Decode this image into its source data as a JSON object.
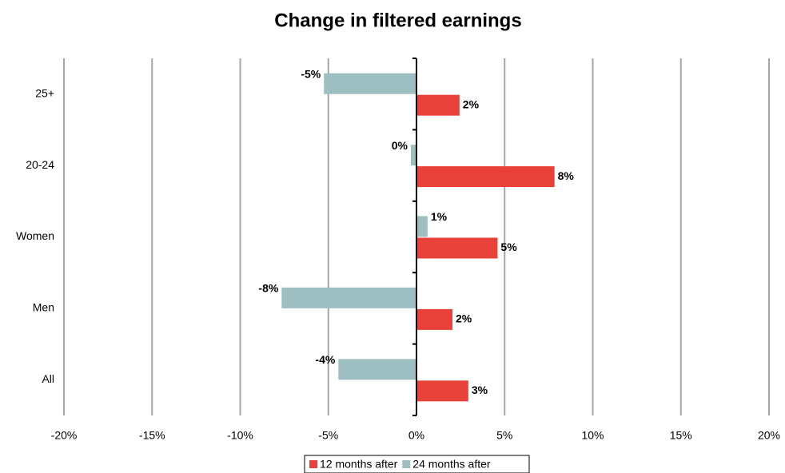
{
  "chart_data": {
    "type": "hbar",
    "title": "Change in filtered earnings",
    "categories": [
      "25+",
      "20-24",
      "Women",
      "Men",
      "All"
    ],
    "series": [
      {
        "name": "12 months after",
        "color": "#e8413a",
        "values": [
          2.44,
          7.83,
          4.6,
          2.04,
          2.94
        ],
        "value_labels": [
          "2%",
          "8%",
          "5%",
          "2%",
          "3%"
        ]
      },
      {
        "name": "24 months after",
        "color": "#9dbfc2",
        "values": [
          -5.25,
          -0.32,
          0.63,
          -7.65,
          -4.43
        ],
        "value_labels": [
          "-5%",
          "0%",
          "1%",
          "-8%",
          "-4%"
        ]
      }
    ],
    "xlim": [
      -20,
      20
    ],
    "xticks": [
      {
        "value": -20,
        "label": "-20%"
      },
      {
        "value": -15,
        "label": "-15%"
      },
      {
        "value": -10,
        "label": "-10%"
      },
      {
        "value": -5,
        "label": "-5%"
      },
      {
        "value": 0,
        "label": "0%"
      },
      {
        "value": 5,
        "label": "5%"
      },
      {
        "value": 10,
        "label": "10%"
      },
      {
        "value": 15,
        "label": "15%"
      },
      {
        "value": 20,
        "label": "20%"
      }
    ],
    "grid": true,
    "legend": "bottom"
  }
}
